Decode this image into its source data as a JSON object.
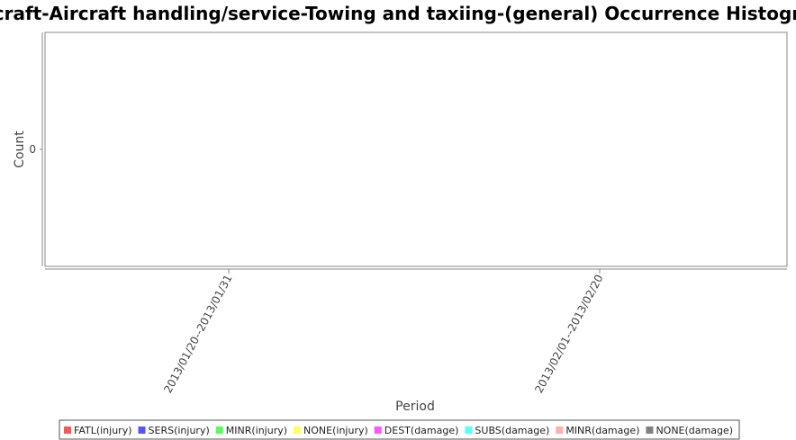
{
  "chart_data": {
    "type": "bar",
    "title": "Aircraft-Aircraft handling/service-Towing and taxiing-(general) Occurrence Histogram",
    "xlabel": "Period",
    "ylabel": "Count",
    "categories": [
      "2013/01/20--2013/01/31",
      "2013/02/01--2013/02/20"
    ],
    "yticks": [
      "0"
    ],
    "legend_position": "bottom",
    "series": [
      {
        "name": "FATL(injury)",
        "color": "#ff5555",
        "values": [
          0,
          0
        ]
      },
      {
        "name": "SERS(injury)",
        "color": "#5555ff",
        "values": [
          0,
          0
        ]
      },
      {
        "name": "MINR(injury)",
        "color": "#55ff55",
        "values": [
          0,
          0
        ]
      },
      {
        "name": "NONE(injury)",
        "color": "#ffff55",
        "values": [
          0,
          0
        ]
      },
      {
        "name": "DEST(damage)",
        "color": "#ff55ff",
        "values": [
          0,
          0
        ]
      },
      {
        "name": "SUBS(damage)",
        "color": "#55ffff",
        "values": [
          0,
          0
        ]
      },
      {
        "name": "MINR(damage)",
        "color": "#ffafaf",
        "values": [
          0,
          0
        ]
      },
      {
        "name": "NONE(damage)",
        "color": "#808080",
        "values": [
          0,
          0
        ]
      }
    ]
  }
}
